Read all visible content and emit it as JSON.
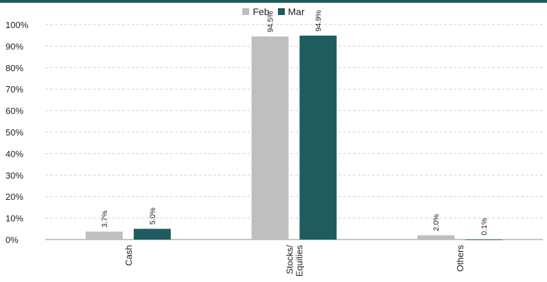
{
  "colors": {
    "top_bar": "#1a5a5c",
    "feb": "#bfbfbf",
    "mar": "#1e5c5f",
    "grid": "#d0d0d0",
    "axis": "#888888"
  },
  "chart_data": {
    "type": "bar",
    "categories": [
      "Cash",
      "Stocks/ Equities",
      "Others"
    ],
    "category_lines": [
      [
        "Cash"
      ],
      [
        "Stocks/",
        "Equities"
      ],
      [
        "Others"
      ]
    ],
    "series": [
      {
        "name": "Feb",
        "values": [
          3.7,
          94.5,
          2.0
        ],
        "labels": [
          "3.7%",
          "94.5%",
          "2.0%"
        ]
      },
      {
        "name": "Mar",
        "values": [
          5.0,
          94.9,
          0.1
        ],
        "labels": [
          "5.0%",
          "94.9%",
          "0.1%"
        ]
      }
    ],
    "ylim": [
      0,
      100
    ],
    "yticks": [
      "0%",
      "10%",
      "20%",
      "30%",
      "40%",
      "50%",
      "60%",
      "70%",
      "80%",
      "90%",
      "100%"
    ],
    "grid": true,
    "legend_position": "top-center"
  }
}
